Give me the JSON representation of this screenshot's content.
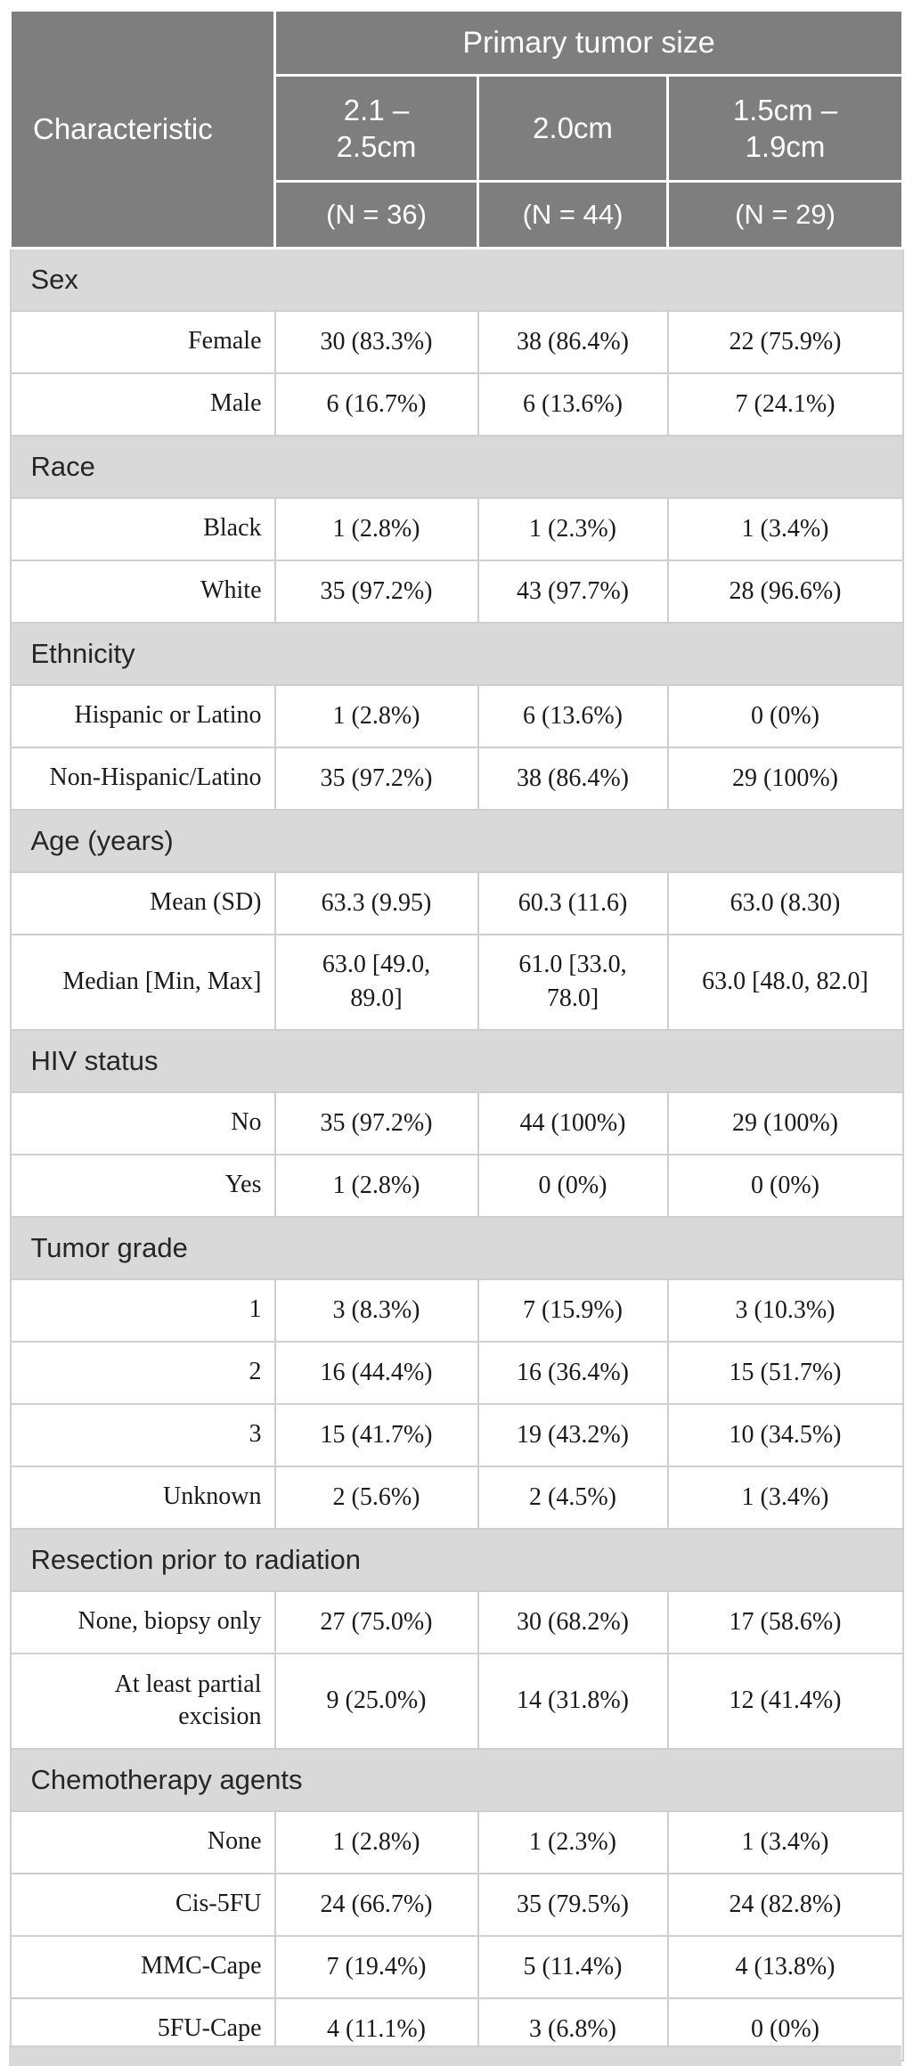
{
  "colors": {
    "header_bg": "#7e7e7e",
    "header_text": "#ffffff",
    "section_bg": "#d9d9d9",
    "body_text": "#1a1a1a",
    "border": "#cfcfcf"
  },
  "table": {
    "header": {
      "characteristic": "Characteristic",
      "group": "Primary tumor size",
      "cols": [
        {
          "size": "2.1 –\n2.5cm",
          "n": "(N = 36)"
        },
        {
          "size": "2.0cm",
          "n": "(N = 44)"
        },
        {
          "size": "1.5cm –\n1.9cm",
          "n": "(N = 29)"
        }
      ]
    },
    "sections": [
      {
        "title": "Sex",
        "rows": [
          {
            "label": "Female",
            "values": [
              "30 (83.3%)",
              "38 (86.4%)",
              "22 (75.9%)"
            ]
          },
          {
            "label": "Male",
            "values": [
              "6 (16.7%)",
              "6 (13.6%)",
              "7 (24.1%)"
            ]
          }
        ]
      },
      {
        "title": "Race",
        "rows": [
          {
            "label": "Black",
            "values": [
              "1 (2.8%)",
              "1 (2.3%)",
              "1 (3.4%)"
            ]
          },
          {
            "label": "White",
            "values": [
              "35 (97.2%)",
              "43 (97.7%)",
              "28 (96.6%)"
            ]
          }
        ]
      },
      {
        "title": "Ethnicity",
        "rows": [
          {
            "label": "Hispanic or Latino",
            "values": [
              "1 (2.8%)",
              "6 (13.6%)",
              "0 (0%)"
            ]
          },
          {
            "label": "Non-Hispanic/Latino",
            "values": [
              "35 (97.2%)",
              "38 (86.4%)",
              "29 (100%)"
            ]
          }
        ]
      },
      {
        "title": "Age (years)",
        "rows": [
          {
            "label": "Mean (SD)",
            "values": [
              "63.3 (9.95)",
              "60.3 (11.6)",
              "63.0 (8.30)"
            ]
          },
          {
            "label": "Median [Min, Max]",
            "values": [
              "63.0 [49.0,\n89.0]",
              "61.0 [33.0,\n78.0]",
              "63.0 [48.0, 82.0]"
            ]
          }
        ]
      },
      {
        "title": "HIV status",
        "rows": [
          {
            "label": "No",
            "values": [
              "35 (97.2%)",
              "44 (100%)",
              "29 (100%)"
            ]
          },
          {
            "label": "Yes",
            "values": [
              "1 (2.8%)",
              "0 (0%)",
              "0 (0%)"
            ]
          }
        ]
      },
      {
        "title": "Tumor grade",
        "rows": [
          {
            "label": "1",
            "values": [
              "3 (8.3%)",
              "7 (15.9%)",
              "3 (10.3%)"
            ]
          },
          {
            "label": "2",
            "values": [
              "16 (44.4%)",
              "16 (36.4%)",
              "15 (51.7%)"
            ]
          },
          {
            "label": "3",
            "values": [
              "15 (41.7%)",
              "19 (43.2%)",
              "10 (34.5%)"
            ]
          },
          {
            "label": "Unknown",
            "values": [
              "2 (5.6%)",
              "2 (4.5%)",
              "1 (3.4%)"
            ]
          }
        ]
      },
      {
        "title": "Resection prior to radiation",
        "rows": [
          {
            "label": "None, biopsy only",
            "values": [
              "27 (75.0%)",
              "30 (68.2%)",
              "17 (58.6%)"
            ]
          },
          {
            "label": "At least partial\nexcision",
            "values": [
              "9 (25.0%)",
              "14 (31.8%)",
              "12 (41.4%)"
            ]
          }
        ]
      },
      {
        "title": "Chemotherapy agents",
        "rows": [
          {
            "label": "None",
            "values": [
              "1 (2.8%)",
              "1 (2.3%)",
              "1 (3.4%)"
            ]
          },
          {
            "label": "Cis-5FU",
            "values": [
              "24 (66.7%)",
              "35 (79.5%)",
              "24 (82.8%)"
            ]
          },
          {
            "label": "MMC-Cape",
            "values": [
              "7 (19.4%)",
              "5 (11.4%)",
              "4 (13.8%)"
            ]
          },
          {
            "label": "5FU-Cape",
            "values": [
              "4 (11.1%)",
              "3 (6.8%)",
              "0 (0%)"
            ]
          }
        ]
      }
    ]
  }
}
